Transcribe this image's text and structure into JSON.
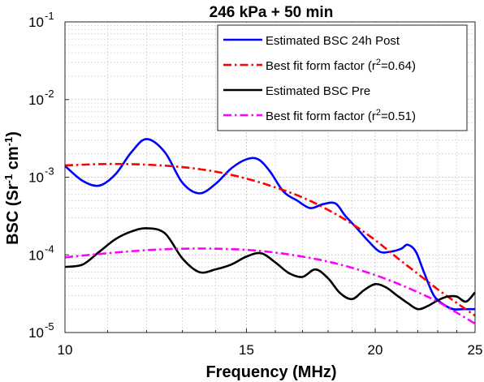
{
  "chart_data": {
    "type": "line",
    "title": "246 kPa + 50 min",
    "xlabel": "Frequency (MHz)",
    "ylabel_main": "BSC (Sr",
    "ylabel_sup1": "-1",
    "ylabel_mid": " cm",
    "ylabel_sup2": "-1",
    "ylabel_end": ")",
    "x_scale": "log",
    "y_scale": "log",
    "xlim": [
      10,
      25
    ],
    "ylim": [
      1e-05,
      0.1
    ],
    "grid": true,
    "legend_position": "top-right",
    "x_ticks": [
      {
        "value": 10,
        "label": "10"
      },
      {
        "value": 15,
        "label": "15"
      },
      {
        "value": 20,
        "label": "20"
      },
      {
        "value": 25,
        "label": "25"
      }
    ],
    "y_ticks": [
      {
        "value": 1e-05,
        "base": "10",
        "exp": "-5"
      },
      {
        "value": 0.0001,
        "base": "10",
        "exp": "-4"
      },
      {
        "value": 0.001,
        "base": "10",
        "exp": "-3"
      },
      {
        "value": 0.01,
        "base": "10",
        "exp": "-2"
      },
      {
        "value": 0.1,
        "base": "10",
        "exp": "-1"
      }
    ],
    "series": [
      {
        "name": "Estimated BSC 24h Post",
        "color": "#0000ff",
        "style": "solid",
        "x": [
          10.0,
          10.4,
          10.8,
          11.2,
          11.6,
          12.0,
          12.5,
          13.0,
          13.5,
          14.0,
          14.5,
          15.0,
          15.4,
          15.8,
          16.3,
          16.8,
          17.3,
          17.8,
          18.3,
          18.7,
          19.2,
          19.7,
          20.2,
          20.7,
          21.2,
          21.5,
          21.9,
          22.3,
          22.8,
          23.3,
          23.8,
          24.3,
          25.0
        ],
        "y": [
          0.0014,
          0.0009,
          0.00078,
          0.0011,
          0.0021,
          0.0031,
          0.0021,
          0.00085,
          0.00062,
          0.00082,
          0.0013,
          0.0017,
          0.0017,
          0.0012,
          0.00065,
          0.0005,
          0.0004,
          0.00045,
          0.00046,
          0.00032,
          0.00022,
          0.00015,
          0.00011,
          0.00011,
          0.00012,
          0.000135,
          0.00011,
          6e-05,
          3e-05,
          2.3e-05,
          2e-05,
          2e-05,
          2e-05
        ]
      },
      {
        "name": "Best fit form factor (r",
        "name_sup": "2",
        "name_end": "=0.64)",
        "color": "#ff0000",
        "style": "dashdot",
        "x": [
          10.0,
          11.0,
          12.0,
          13.0,
          14.0,
          15.0,
          16.0,
          17.0,
          18.0,
          19.0,
          20.0,
          21.0,
          22.0,
          23.0,
          24.0,
          25.0
        ],
        "y": [
          0.00142,
          0.00148,
          0.00145,
          0.00135,
          0.00118,
          0.00096,
          0.00074,
          0.00055,
          0.00038,
          0.00025,
          0.000155,
          9.2e-05,
          5.7e-05,
          3.6e-05,
          2.4e-05,
          1.65e-05
        ]
      },
      {
        "name": "Estimated BSC Pre",
        "color": "#000000",
        "style": "solid",
        "x": [
          10.0,
          10.4,
          10.8,
          11.2,
          11.6,
          12.0,
          12.5,
          13.0,
          13.5,
          14.0,
          14.5,
          15.0,
          15.5,
          16.0,
          16.5,
          17.0,
          17.5,
          18.0,
          18.5,
          19.0,
          19.5,
          20.0,
          20.5,
          21.0,
          21.5,
          22.0,
          22.5,
          23.0,
          23.5,
          24.0,
          24.5,
          25.0
        ],
        "y": [
          7e-05,
          7.5e-05,
          0.00011,
          0.00016,
          0.0002,
          0.00022,
          0.00019,
          9e-05,
          6e-05,
          6.5e-05,
          7.5e-05,
          9.5e-05,
          0.000105,
          8e-05,
          5.8e-05,
          5.2e-05,
          6.5e-05,
          5e-05,
          3.2e-05,
          2.7e-05,
          3.5e-05,
          4.2e-05,
          3.8e-05,
          3e-05,
          2.4e-05,
          2e-05,
          2.2e-05,
          2.6e-05,
          2.9e-05,
          2.9e-05,
          2.5e-05,
          3.3e-05
        ]
      },
      {
        "name": "Best fit form factor (r",
        "name_sup": "2",
        "name_end": "=0.51)",
        "color": "#ff00ff",
        "style": "dashdot",
        "x": [
          10.0,
          11.0,
          12.0,
          13.0,
          14.0,
          15.0,
          16.0,
          17.0,
          18.0,
          19.0,
          20.0,
          21.0,
          22.0,
          23.0,
          24.0,
          25.0
        ],
        "y": [
          9.3e-05,
          0.000105,
          0.000115,
          0.00012,
          0.00012,
          0.000116,
          0.000107,
          9.5e-05,
          8.2e-05,
          6.8e-05,
          5.5e-05,
          4.3e-05,
          3.3e-05,
          2.5e-05,
          1.8e-05,
          1.3e-05
        ]
      }
    ]
  }
}
